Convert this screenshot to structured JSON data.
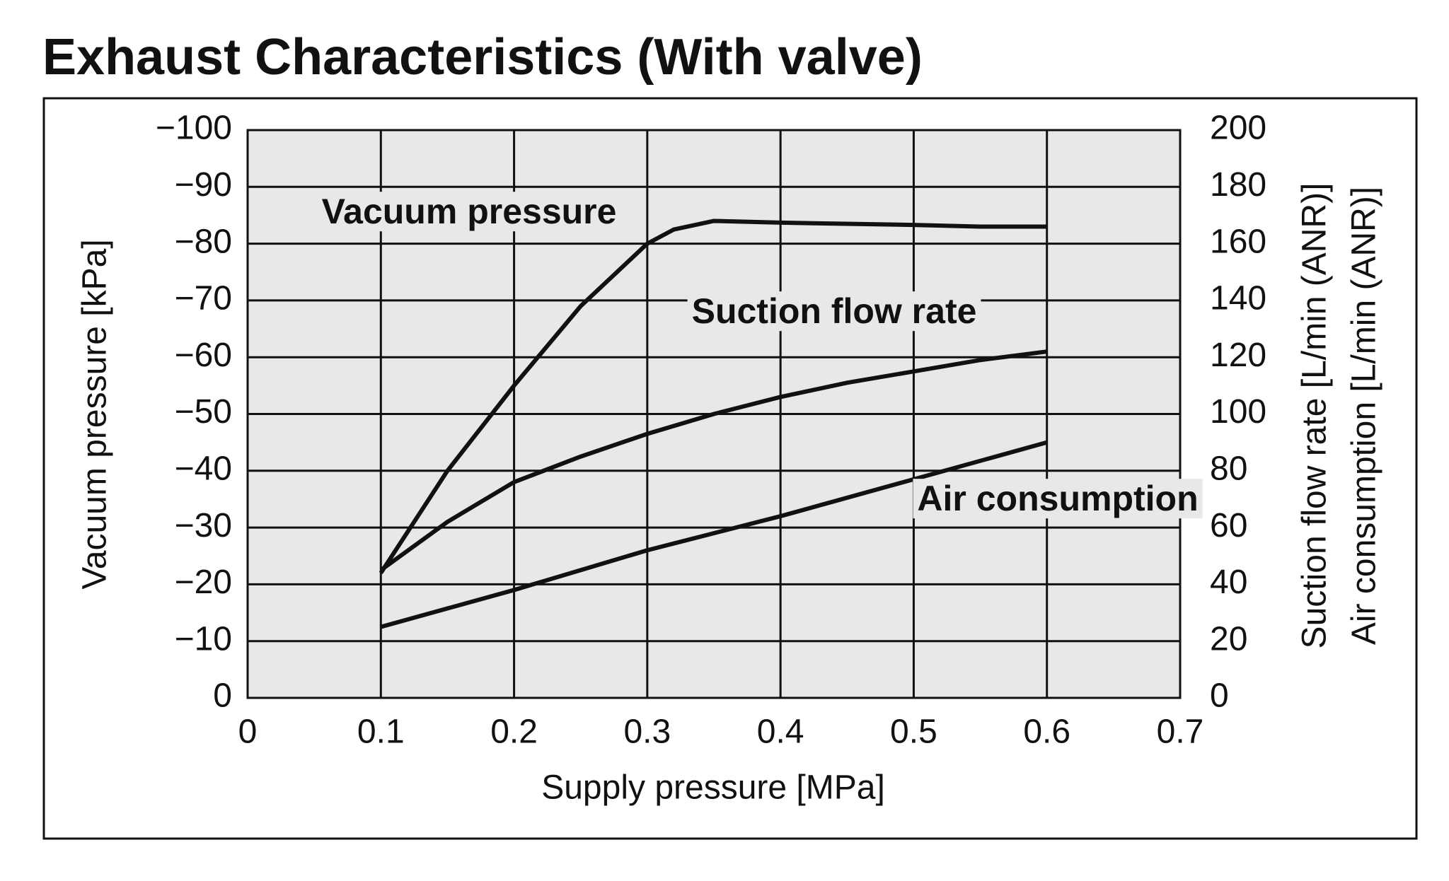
{
  "chart_data": {
    "type": "line",
    "title": "Exhaust Characteristics (With valve)",
    "xlabel": "Supply pressure [MPa]",
    "ylabel": "Vacuum pressure [kPa]",
    "y2labels": [
      "Suction flow rate [L/min (ANR)]",
      "Air consumption [L/min (ANR)]"
    ],
    "xlim": [
      0,
      0.7
    ],
    "xticks": [
      0,
      0.1,
      0.2,
      0.3,
      0.4,
      0.5,
      0.6,
      0.7
    ],
    "ylim": [
      0,
      -100
    ],
    "yticks": [
      0,
      {
        "value": -10,
        "label": "−10"
      },
      {
        "value": -20,
        "label": "−20"
      },
      {
        "value": -30,
        "label": "−30"
      },
      {
        "value": -40,
        "label": "−40"
      },
      {
        "value": -50,
        "label": "−50"
      },
      {
        "value": -60,
        "label": "−60"
      },
      {
        "value": -70,
        "label": "−70"
      },
      {
        "value": -80,
        "label": "−80"
      },
      {
        "value": -90,
        "label": "−90"
      },
      {
        "value": -100,
        "label": "−100"
      }
    ],
    "y2lim": [
      0,
      200
    ],
    "y2ticks": [
      0,
      20,
      40,
      60,
      80,
      100,
      120,
      140,
      160,
      180,
      200
    ],
    "grid": true,
    "series": [
      {
        "name": "Vacuum pressure",
        "color": "#111111",
        "x": [
          0.1,
          0.15,
          0.2,
          0.25,
          0.3,
          0.32,
          0.35,
          0.4,
          0.5,
          0.55,
          0.6
        ],
        "values": [
          -22,
          -40,
          -55,
          -69,
          -80,
          -82.5,
          -84,
          -83.7,
          -83.3,
          -83,
          -83
        ]
      },
      {
        "name": "Suction flow rate",
        "color": "#111111",
        "axis": "y2",
        "x": [
          0.1,
          0.15,
          0.2,
          0.25,
          0.3,
          0.35,
          0.4,
          0.45,
          0.5,
          0.55,
          0.6
        ],
        "values": [
          45,
          62,
          76,
          85,
          93,
          100,
          106,
          111,
          115,
          119,
          122
        ]
      },
      {
        "name": "Air consumption",
        "color": "#111111",
        "axis": "y2",
        "x": [
          0.1,
          0.2,
          0.3,
          0.4,
          0.5,
          0.6
        ],
        "values": [
          25,
          38,
          52,
          64,
          77,
          90
        ]
      }
    ]
  }
}
